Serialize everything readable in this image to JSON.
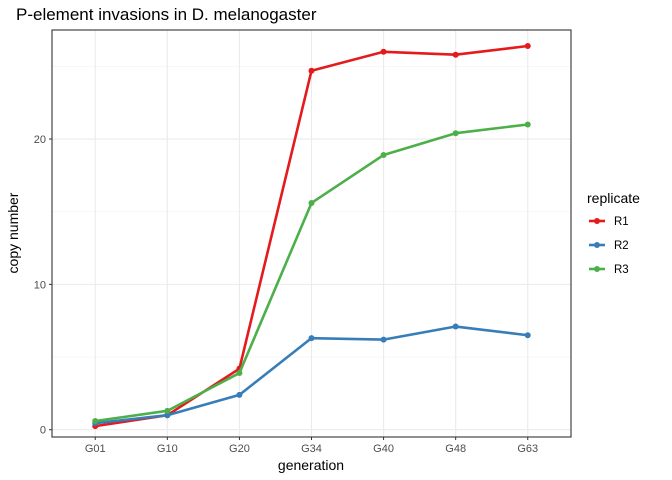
{
  "chart_data": {
    "type": "line",
    "title": "P-element invasions in D. melanogaster",
    "xlabel": "generation",
    "ylabel": "copy number",
    "categories": [
      "G01",
      "G10",
      "G20",
      "G34",
      "G40",
      "G48",
      "G63"
    ],
    "ylim": [
      -0.5,
      27.5
    ],
    "yticks": [
      0,
      10,
      20
    ],
    "grid": true,
    "legend": {
      "title": "replicate",
      "position": "right"
    },
    "series": [
      {
        "name": "R1",
        "color": "#e41a1c",
        "values": [
          0.25,
          1.0,
          4.2,
          24.7,
          26.0,
          25.8,
          26.4
        ]
      },
      {
        "name": "R2",
        "color": "#377eb8",
        "values": [
          0.45,
          1.0,
          2.4,
          6.3,
          6.2,
          7.1,
          6.5
        ]
      },
      {
        "name": "R3",
        "color": "#4daf4a",
        "values": [
          0.6,
          1.3,
          3.9,
          15.6,
          18.9,
          20.4,
          21.0
        ]
      }
    ]
  }
}
